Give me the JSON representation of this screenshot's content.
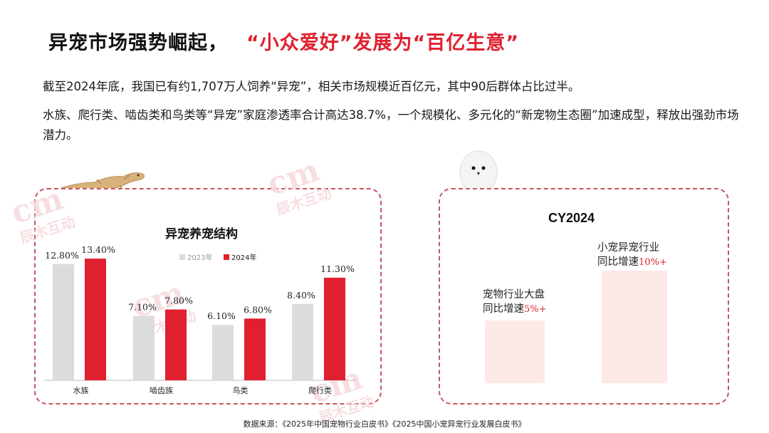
{
  "header": {
    "title_main": "异宠市场强势崛起，",
    "title_highlight": "“小众爱好”发展为“百亿生意”"
  },
  "body": {
    "paragraph1": "截至2024年底，我国已有约1,707万人饲养“异宠”，相关市场规模近百亿元，其中90后群体占比过半。",
    "paragraph2": "水族、爬行类、啮齿类和鸟类等“异宠”家庭渗透率合计高达38.7%，一个规模化、多元化的“新宠物生态圈”加速成型，释放出强劲市场潜力。"
  },
  "watermark": {
    "logo": "cm",
    "text": "辰木互动"
  },
  "colors": {
    "accent": "#e0202f",
    "gray_bar": "#dcdcdc",
    "pink_box": "#fde9e8",
    "dash": "#c9555f"
  },
  "chart_data": [
    {
      "type": "bar",
      "title": "异宠养宠结构",
      "categories": [
        "水族",
        "啮齿族",
        "鸟类",
        "爬行类"
      ],
      "series": [
        {
          "name": "2023年",
          "values": [
            12.8,
            7.1,
            6.1,
            8.4
          ],
          "labels": [
            "12.80%",
            "7.10%",
            "6.10%",
            "8.40%"
          ]
        },
        {
          "name": "2024年",
          "values": [
            13.4,
            7.8,
            6.8,
            11.3
          ],
          "labels": [
            "13.40%",
            "7.80%",
            "6.80%",
            "11.30%"
          ]
        }
      ],
      "ylim": [
        0,
        16
      ],
      "grid": false,
      "legend": "top-center"
    },
    {
      "type": "bar",
      "title": "CY2024",
      "categories": [
        "宠物行业大盘",
        "小宠异宠行业"
      ],
      "values": [
        5,
        10
      ]
    }
  ],
  "right": {
    "title": "CY2024",
    "big_label_line1": "小宠异宠行业",
    "big_label_line2": "同比增速",
    "big_value": "10%+",
    "small_label_line1": "宠物行业大盘",
    "small_label_line2": "同比增速",
    "small_value": "5%+"
  },
  "footer": {
    "source": "数据来源：《2025年中国宠物行业白皮书》《2025中国小宠异宠行业发展白皮书》"
  }
}
